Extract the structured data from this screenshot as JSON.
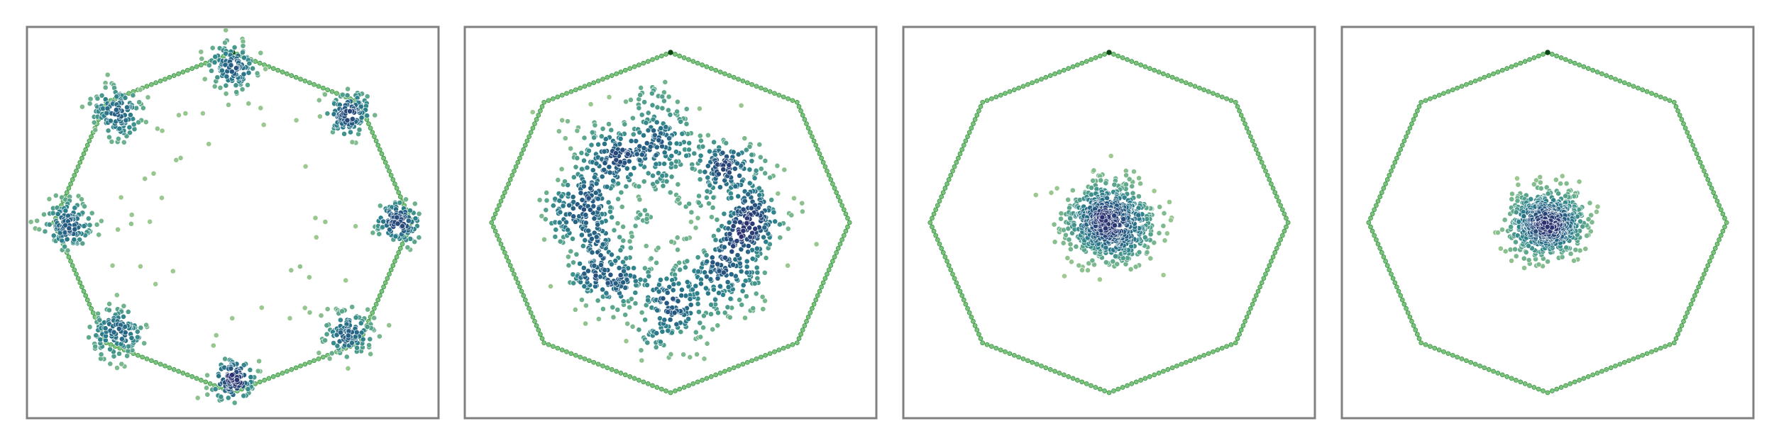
{
  "figure": {
    "panels": [
      {
        "id": "p1",
        "stage": "octagon-vertex-clusters"
      },
      {
        "id": "p2",
        "stage": "ring-of-blobs"
      },
      {
        "id": "p3",
        "stage": "dense-core"
      },
      {
        "id": "p4",
        "stage": "tight-core"
      }
    ]
  },
  "chart_data": [
    {
      "type": "scatter",
      "title": "",
      "xlabel": "",
      "ylabel": "",
      "xlim": [
        -1.15,
        1.15
      ],
      "ylim": [
        -1.15,
        1.15
      ],
      "grid": false,
      "ticks": false,
      "boundary": {
        "shape": "regular-octagon",
        "radius": 1.0,
        "vertex_angle_deg": 90,
        "color": "#7cc47c",
        "marker_color": "#2e8b3c",
        "points_per_edge": 28
      },
      "colormap": "crest",
      "clusters": [
        {
          "center": [
            0.0,
            0.92
          ],
          "std": 0.07,
          "count": 110
        },
        {
          "center": [
            0.65,
            0.65
          ],
          "std": 0.07,
          "count": 110
        },
        {
          "center": [
            0.92,
            0.0
          ],
          "std": 0.06,
          "count": 110
        },
        {
          "center": [
            0.65,
            -0.65
          ],
          "std": 0.07,
          "count": 110
        },
        {
          "center": [
            0.0,
            -0.92
          ],
          "std": 0.06,
          "count": 120
        },
        {
          "center": [
            -0.65,
            -0.65
          ],
          "std": 0.08,
          "count": 120
        },
        {
          "center": [
            -0.92,
            0.0
          ],
          "std": 0.07,
          "count": 120
        },
        {
          "center": [
            -0.65,
            0.65
          ],
          "std": 0.08,
          "count": 120
        }
      ],
      "scatter_noise": {
        "count": 40,
        "radius": 0.75
      }
    },
    {
      "type": "scatter",
      "title": "",
      "xlabel": "",
      "ylabel": "",
      "xlim": [
        -1.15,
        1.15
      ],
      "ylim": [
        -1.15,
        1.15
      ],
      "grid": false,
      "ticks": false,
      "boundary": {
        "shape": "regular-octagon",
        "radius": 1.0,
        "vertex_angle_deg": 90,
        "color": "#7cc47c",
        "marker_color": "#2e8b3c",
        "points_per_edge": 28
      },
      "colormap": "crest",
      "clusters": [
        {
          "center": [
            -0.05,
            0.5
          ],
          "std": 0.14,
          "count": 170
        },
        {
          "center": [
            0.33,
            0.3
          ],
          "std": 0.11,
          "count": 140
        },
        {
          "center": [
            0.45,
            0.0
          ],
          "std": 0.1,
          "count": 160
        },
        {
          "center": [
            0.3,
            -0.32
          ],
          "std": 0.12,
          "count": 160
        },
        {
          "center": [
            0.0,
            -0.5
          ],
          "std": 0.13,
          "count": 170
        },
        {
          "center": [
            -0.35,
            -0.3
          ],
          "std": 0.11,
          "count": 160
        },
        {
          "center": [
            -0.48,
            0.05
          ],
          "std": 0.12,
          "count": 160
        },
        {
          "center": [
            -0.35,
            0.35
          ],
          "std": 0.13,
          "count": 150
        }
      ],
      "scatter_noise": {
        "count": 25,
        "radius": 0.2
      }
    },
    {
      "type": "scatter",
      "title": "",
      "xlabel": "",
      "ylabel": "",
      "xlim": [
        -1.15,
        1.15
      ],
      "ylim": [
        -1.15,
        1.15
      ],
      "grid": false,
      "ticks": false,
      "boundary": {
        "shape": "regular-octagon",
        "radius": 1.0,
        "vertex_angle_deg": 90,
        "color": "#7cc47c",
        "marker_color": "#2e8b3c",
        "points_per_edge": 28
      },
      "colormap": "crest",
      "clusters": [
        {
          "center": [
            0.0,
            0.0
          ],
          "std": 0.12,
          "count": 700
        }
      ],
      "scatter_noise": {
        "count": 0,
        "radius": 0
      }
    },
    {
      "type": "scatter",
      "title": "",
      "xlabel": "",
      "ylabel": "",
      "xlim": [
        -1.15,
        1.15
      ],
      "ylim": [
        -1.15,
        1.15
      ],
      "grid": false,
      "ticks": false,
      "boundary": {
        "shape": "regular-octagon",
        "radius": 1.0,
        "vertex_angle_deg": 90,
        "color": "#7cc47c",
        "marker_color": "#2e8b3c",
        "points_per_edge": 28
      },
      "colormap": "crest",
      "clusters": [
        {
          "center": [
            0.0,
            0.0
          ],
          "std": 0.1,
          "count": 600
        }
      ],
      "scatter_noise": {
        "count": 0,
        "radius": 0
      }
    }
  ]
}
